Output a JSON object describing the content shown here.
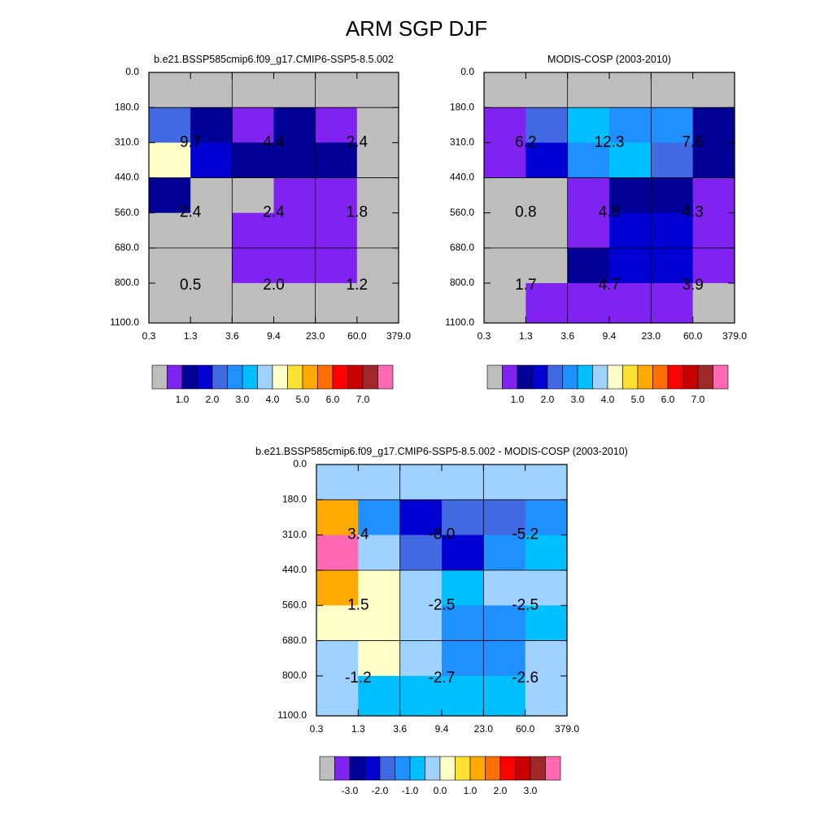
{
  "title": "ARM SGP DJF",
  "colors": {
    "missing": "#bebebe",
    "palette": [
      "#8022f0",
      "#000096",
      "#0000d2",
      "#4169e1",
      "#1e90ff",
      "#00bfff",
      "#a0d2ff",
      "#ffffc8",
      "#ffe132",
      "#ffaa00",
      "#ff6e00",
      "#ff0000",
      "#c80000",
      "#a02828",
      "#ff69b4"
    ],
    "grid_line": "#000000"
  },
  "chart_data": [
    {
      "type": "heatmap",
      "title": "b.e21.BSSP585cmip6.f09_g17.CMIP6-SSP5-8.5.002",
      "x_ticks": [
        "0.3",
        "1.3",
        "3.6",
        "9.4",
        "23.0",
        "60.0",
        "379.0"
      ],
      "y_ticks": [
        "0.0",
        "180.0",
        "310.0",
        "440.0",
        "560.0",
        "680.0",
        "800.0",
        "1100.0"
      ],
      "colorbar_labels": [
        "1.0",
        "2.0",
        "3.0",
        "4.0",
        "5.0",
        "6.0",
        "7.0"
      ],
      "cells": [
        [
          0,
          0,
          0,
          0,
          0,
          0
        ],
        [
          4,
          2,
          1,
          2,
          1,
          0
        ],
        [
          8,
          3,
          2,
          2,
          2,
          0
        ],
        [
          2,
          0,
          0,
          1,
          1,
          0
        ],
        [
          0,
          0,
          1,
          1,
          1,
          0
        ],
        [
          0,
          0,
          1,
          1,
          1,
          0
        ],
        [
          0,
          0,
          0,
          0,
          0,
          0
        ]
      ],
      "box_labels": [
        [
          "9.7",
          "4.4",
          "2.4"
        ],
        [
          "2.4",
          "2.4",
          "1.8"
        ],
        [
          "0.5",
          "2.0",
          "1.2"
        ]
      ]
    },
    {
      "type": "heatmap",
      "title": "MODIS-COSP (2003-2010)",
      "x_ticks": [
        "0.3",
        "1.3",
        "3.6",
        "9.4",
        "23.0",
        "60.0",
        "379.0"
      ],
      "y_ticks": [
        "0.0",
        "180.0",
        "310.0",
        "440.0",
        "560.0",
        "680.0",
        "800.0",
        "1100.0"
      ],
      "colorbar_labels": [
        "1.0",
        "2.0",
        "3.0",
        "4.0",
        "5.0",
        "6.0",
        "7.0"
      ],
      "cells": [
        [
          0,
          0,
          0,
          0,
          0,
          0
        ],
        [
          1,
          4,
          6,
          5,
          5,
          2
        ],
        [
          1,
          3,
          5,
          6,
          4,
          2
        ],
        [
          0,
          0,
          1,
          2,
          2,
          1
        ],
        [
          0,
          0,
          1,
          3,
          3,
          1
        ],
        [
          0,
          0,
          2,
          3,
          3,
          1
        ],
        [
          0,
          1,
          1,
          1,
          1,
          0
        ]
      ],
      "box_labels": [
        [
          "6.2",
          "12.3",
          "7.6"
        ],
        [
          "0.8",
          "4.8",
          "4.3"
        ],
        [
          "1.7",
          "4.7",
          "3.9"
        ]
      ]
    },
    {
      "type": "heatmap",
      "title": "b.e21.BSSP585cmip6.f09_g17.CMIP6-SSP5-8.5.002 - MODIS-COSP (2003-2010)",
      "x_ticks": [
        "0.3",
        "1.3",
        "3.6",
        "9.4",
        "23.0",
        "60.0",
        "379.0"
      ],
      "y_ticks": [
        "0.0",
        "180.0",
        "310.0",
        "440.0",
        "560.0",
        "680.0",
        "800.0",
        "1100.0"
      ],
      "colorbar_labels": [
        "-3.0",
        "-2.0",
        "-1.0",
        "0.0",
        "1.0",
        "2.0",
        "3.0"
      ],
      "cells": [
        [
          7,
          7,
          7,
          7,
          7,
          7
        ],
        [
          10,
          5,
          3,
          4,
          4,
          5
        ],
        [
          15,
          7,
          4,
          3,
          5,
          6
        ],
        [
          10,
          8,
          7,
          6,
          7,
          7
        ],
        [
          8,
          8,
          7,
          5,
          5,
          6
        ],
        [
          7,
          8,
          7,
          5,
          5,
          7
        ],
        [
          7,
          6,
          6,
          6,
          6,
          7
        ]
      ],
      "box_labels": [
        [
          "3.4",
          "-8.0",
          "-5.2"
        ],
        [
          "1.5",
          "-2.5",
          "-2.5"
        ],
        [
          "-1.2",
          "-2.7",
          "-2.6"
        ]
      ]
    }
  ]
}
